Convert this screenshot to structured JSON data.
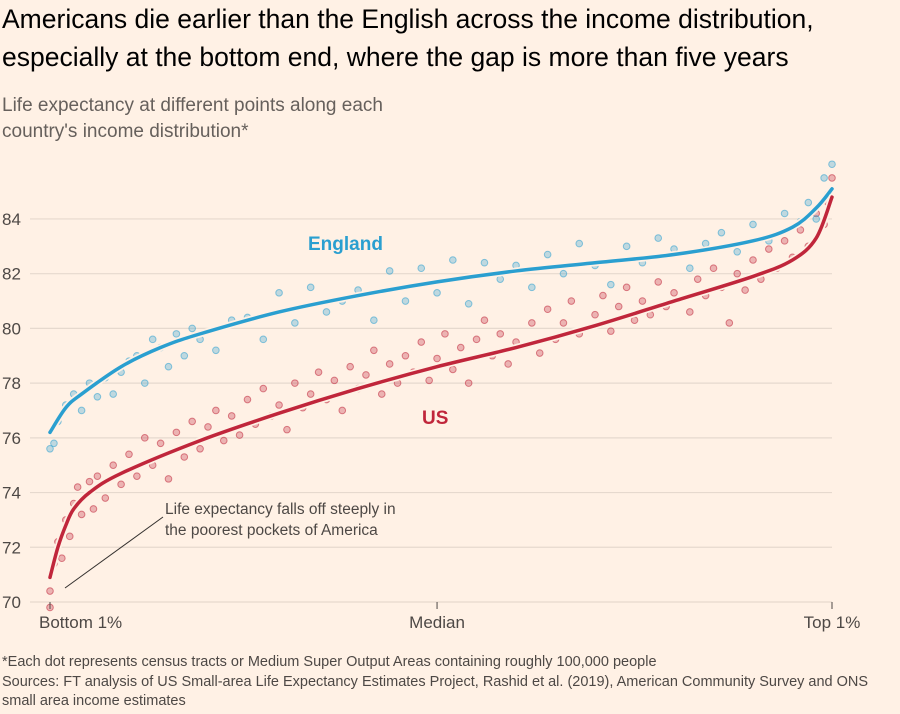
{
  "title": "Americans die earlier than the English across the income distribution, especially at the bottom end, where the gap is more than five years",
  "subtitle": "Life expectancy at different points along each country's income distribution*",
  "footnote": "*Each dot represents census tracts or Medium Super Output Areas containing roughly 100,000 people",
  "sources": "Sources: FT analysis of US Small-area Life Expectancy Estimates Project, Rashid et al. (2019), American Community Survey and ONS small area income estimates",
  "annotation": "Life expectancy falls off steeply in the poorest pockets of America",
  "chart_data": {
    "type": "scatter",
    "xlabel": "",
    "ylabel": "",
    "xlim": [
      1,
      100
    ],
    "ylim": [
      70,
      86
    ],
    "yticks": [
      70,
      72,
      74,
      76,
      78,
      80,
      82,
      84
    ],
    "xticks": [
      {
        "value": 1,
        "label": "Bottom 1%"
      },
      {
        "value": 50,
        "label": "Median"
      },
      {
        "value": 100,
        "label": "Top 1%"
      }
    ],
    "grid": true,
    "series": [
      {
        "name": "England",
        "color": "#2a9fd0",
        "trend": [
          [
            1,
            76.2
          ],
          [
            3,
            77.1
          ],
          [
            5,
            77.6
          ],
          [
            10,
            78.6
          ],
          [
            15,
            79.3
          ],
          [
            20,
            79.8
          ],
          [
            30,
            80.6
          ],
          [
            40,
            81.2
          ],
          [
            50,
            81.7
          ],
          [
            60,
            82.1
          ],
          [
            70,
            82.4
          ],
          [
            80,
            82.7
          ],
          [
            90,
            83.2
          ],
          [
            95,
            83.7
          ],
          [
            98,
            84.4
          ],
          [
            100,
            85.1
          ]
        ],
        "points": [
          [
            1,
            75.6
          ],
          [
            1.5,
            75.8
          ],
          [
            2,
            76.6
          ],
          [
            3,
            77.2
          ],
          [
            4,
            77.6
          ],
          [
            5,
            77.0
          ],
          [
            6,
            78.0
          ],
          [
            7,
            77.5
          ],
          [
            8,
            78.2
          ],
          [
            9,
            77.6
          ],
          [
            10,
            78.4
          ],
          [
            11,
            78.8
          ],
          [
            12,
            79.0
          ],
          [
            13,
            78.0
          ],
          [
            14,
            79.6
          ],
          [
            15,
            79.3
          ],
          [
            16,
            78.6
          ],
          [
            17,
            79.8
          ],
          [
            18,
            79.0
          ],
          [
            19,
            80.0
          ],
          [
            20,
            79.6
          ],
          [
            22,
            79.2
          ],
          [
            24,
            80.3
          ],
          [
            26,
            80.4
          ],
          [
            28,
            79.6
          ],
          [
            30,
            81.3
          ],
          [
            32,
            80.2
          ],
          [
            34,
            81.5
          ],
          [
            36,
            80.6
          ],
          [
            38,
            81.0
          ],
          [
            40,
            81.4
          ],
          [
            42,
            80.3
          ],
          [
            44,
            82.1
          ],
          [
            46,
            81.0
          ],
          [
            48,
            82.2
          ],
          [
            50,
            81.3
          ],
          [
            52,
            82.5
          ],
          [
            54,
            80.9
          ],
          [
            56,
            82.4
          ],
          [
            58,
            81.8
          ],
          [
            60,
            82.3
          ],
          [
            62,
            81.5
          ],
          [
            64,
            82.7
          ],
          [
            66,
            82.0
          ],
          [
            68,
            83.1
          ],
          [
            70,
            82.3
          ],
          [
            72,
            81.6
          ],
          [
            74,
            83.0
          ],
          [
            76,
            82.4
          ],
          [
            78,
            83.3
          ],
          [
            80,
            82.9
          ],
          [
            82,
            82.2
          ],
          [
            84,
            83.1
          ],
          [
            86,
            83.5
          ],
          [
            88,
            82.8
          ],
          [
            90,
            83.8
          ],
          [
            92,
            83.2
          ],
          [
            94,
            84.2
          ],
          [
            96,
            83.9
          ],
          [
            97,
            84.6
          ],
          [
            98,
            84.0
          ],
          [
            99,
            85.5
          ],
          [
            99.5,
            84.9
          ],
          [
            100,
            86.0
          ]
        ]
      },
      {
        "name": "US",
        "color": "#c0263b",
        "trend": [
          [
            1,
            70.9
          ],
          [
            2,
            72.0
          ],
          [
            3,
            72.8
          ],
          [
            4,
            73.4
          ],
          [
            6,
            74.0
          ],
          [
            10,
            74.7
          ],
          [
            20,
            75.9
          ],
          [
            30,
            76.9
          ],
          [
            40,
            77.8
          ],
          [
            50,
            78.6
          ],
          [
            60,
            79.3
          ],
          [
            70,
            80.1
          ],
          [
            80,
            81.0
          ],
          [
            90,
            81.9
          ],
          [
            95,
            82.5
          ],
          [
            98,
            83.3
          ],
          [
            100,
            84.8
          ]
        ],
        "points": [
          [
            1,
            69.8
          ],
          [
            1,
            70.4
          ],
          [
            1.5,
            71.4
          ],
          [
            2,
            72.2
          ],
          [
            2.5,
            71.6
          ],
          [
            3,
            73.0
          ],
          [
            3.5,
            72.4
          ],
          [
            4,
            73.6
          ],
          [
            4.5,
            74.2
          ],
          [
            5,
            73.2
          ],
          [
            6,
            74.4
          ],
          [
            6.5,
            73.4
          ],
          [
            7,
            74.6
          ],
          [
            8,
            73.8
          ],
          [
            9,
            75.0
          ],
          [
            10,
            74.3
          ],
          [
            11,
            75.4
          ],
          [
            12,
            74.6
          ],
          [
            13,
            76.0
          ],
          [
            14,
            75.0
          ],
          [
            15,
            75.8
          ],
          [
            16,
            74.5
          ],
          [
            17,
            76.2
          ],
          [
            18,
            75.3
          ],
          [
            19,
            76.6
          ],
          [
            20,
            75.6
          ],
          [
            21,
            76.4
          ],
          [
            22,
            77.0
          ],
          [
            23,
            75.9
          ],
          [
            24,
            76.8
          ],
          [
            25,
            76.1
          ],
          [
            26,
            77.4
          ],
          [
            27,
            76.5
          ],
          [
            28,
            77.8
          ],
          [
            29,
            76.8
          ],
          [
            30,
            77.2
          ],
          [
            31,
            76.3
          ],
          [
            32,
            78.0
          ],
          [
            33,
            77.1
          ],
          [
            34,
            77.6
          ],
          [
            35,
            78.4
          ],
          [
            36,
            77.4
          ],
          [
            37,
            78.1
          ],
          [
            38,
            77.0
          ],
          [
            39,
            78.6
          ],
          [
            40,
            77.8
          ],
          [
            41,
            78.3
          ],
          [
            42,
            79.2
          ],
          [
            43,
            77.6
          ],
          [
            44,
            78.7
          ],
          [
            45,
            78.0
          ],
          [
            46,
            79.0
          ],
          [
            47,
            78.4
          ],
          [
            48,
            79.5
          ],
          [
            49,
            78.1
          ],
          [
            50,
            78.9
          ],
          [
            51,
            79.8
          ],
          [
            52,
            78.5
          ],
          [
            53,
            79.3
          ],
          [
            54,
            78.0
          ],
          [
            55,
            79.6
          ],
          [
            56,
            80.3
          ],
          [
            57,
            79.0
          ],
          [
            58,
            79.8
          ],
          [
            59,
            78.7
          ],
          [
            60,
            79.5
          ],
          [
            62,
            80.2
          ],
          [
            63,
            79.1
          ],
          [
            64,
            80.7
          ],
          [
            65,
            79.6
          ],
          [
            66,
            80.2
          ],
          [
            67,
            81.0
          ],
          [
            68,
            79.8
          ],
          [
            70,
            80.5
          ],
          [
            71,
            81.2
          ],
          [
            72,
            79.9
          ],
          [
            73,
            80.8
          ],
          [
            74,
            81.5
          ],
          [
            75,
            80.3
          ],
          [
            76,
            81.0
          ],
          [
            77,
            80.5
          ],
          [
            78,
            81.7
          ],
          [
            79,
            80.8
          ],
          [
            80,
            81.3
          ],
          [
            82,
            80.6
          ],
          [
            83,
            81.8
          ],
          [
            84,
            81.2
          ],
          [
            85,
            82.2
          ],
          [
            86,
            81.5
          ],
          [
            87,
            80.2
          ],
          [
            88,
            82.0
          ],
          [
            89,
            81.4
          ],
          [
            90,
            82.5
          ],
          [
            91,
            81.8
          ],
          [
            92,
            82.9
          ],
          [
            93,
            82.2
          ],
          [
            94,
            83.2
          ],
          [
            95,
            82.6
          ],
          [
            96,
            83.6
          ],
          [
            97,
            83.0
          ],
          [
            98,
            84.2
          ],
          [
            99,
            83.8
          ],
          [
            99.5,
            84.6
          ],
          [
            100,
            85.5
          ]
        ]
      }
    ]
  }
}
